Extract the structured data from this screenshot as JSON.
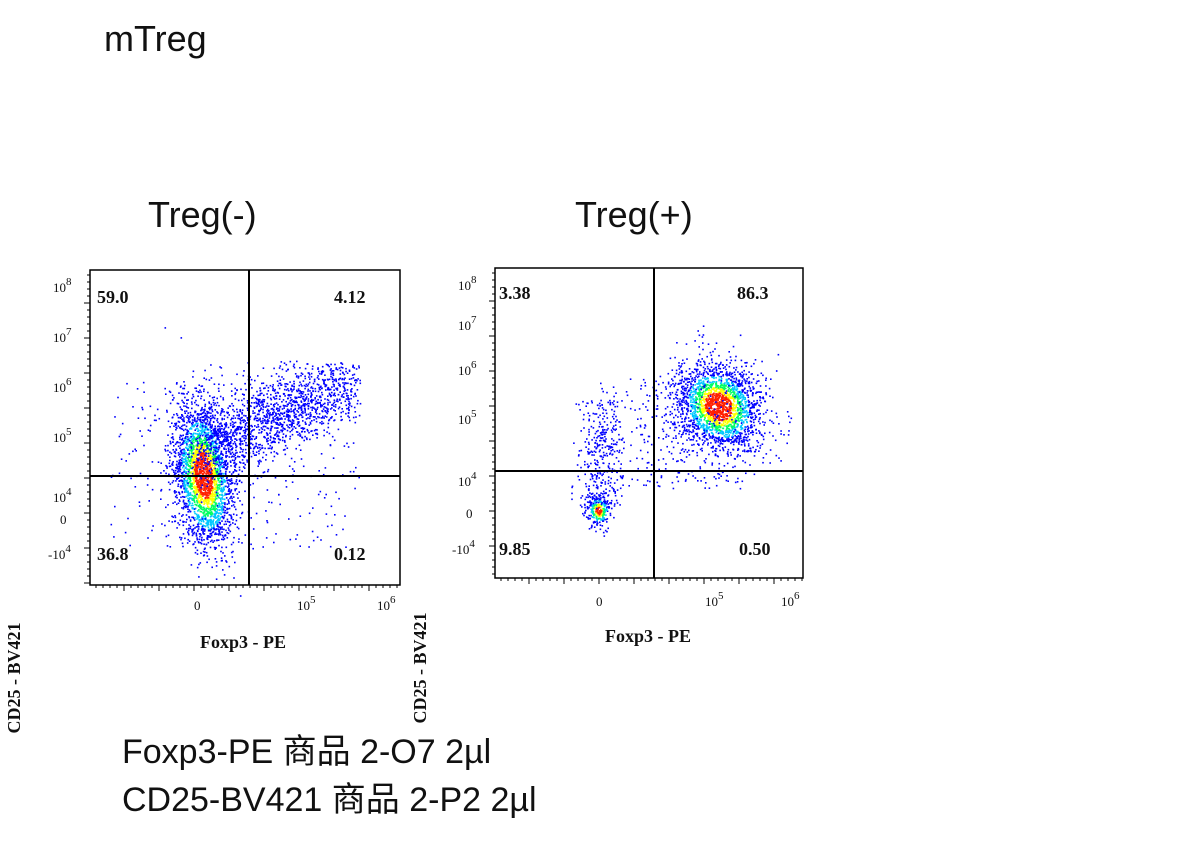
{
  "page_title": "mTreg",
  "chart_data": [
    {
      "type": "scatter",
      "title": "Treg(-)",
      "xlabel": "Foxp3 - PE",
      "ylabel": "CD25 - BV421",
      "x_ticks": [
        "0",
        "10^5",
        "10^6"
      ],
      "y_ticks": [
        "10^8",
        "10^7",
        "10^6",
        "10^5",
        "10^4",
        "0",
        "-10^4"
      ],
      "quadrants": {
        "top_left": "59.0",
        "top_right": "4.12",
        "bottom_left": "36.8",
        "bottom_right": "0.12"
      },
      "quadrant_gate": {
        "x": 30000,
        "y": 10000
      },
      "populations": [
        {
          "name": "main",
          "x_center": 0,
          "y_center": 10000,
          "spread": "elongated along diagonal"
        },
        {
          "name": "upper-right tail",
          "x_center": 100000,
          "y_center": 150000
        }
      ],
      "colormap": [
        "#0000ff",
        "#00c8ff",
        "#00ff60",
        "#ffff00",
        "#ff2000"
      ]
    },
    {
      "type": "scatter",
      "title": "Treg(+)",
      "xlabel": "Foxp3 - PE",
      "ylabel": "CD25 - BV421",
      "x_ticks": [
        "0",
        "10^5",
        "10^6"
      ],
      "y_ticks": [
        "10^8",
        "10^7",
        "10^6",
        "10^5",
        "10^4",
        "0",
        "-10^4"
      ],
      "quadrants": {
        "top_left": "3.38",
        "top_right": "86.3",
        "bottom_left": "9.85",
        "bottom_right": "0.50"
      },
      "quadrant_gate": {
        "x": 30000,
        "y": 10000
      },
      "populations": [
        {
          "name": "main",
          "x_center": 150000,
          "y_center": 200000
        },
        {
          "name": "negative",
          "x_center": 0,
          "y_center": 0
        }
      ],
      "colormap": [
        "#0000ff",
        "#00c8ff",
        "#00ff60",
        "#ffff00",
        "#ff2000"
      ]
    }
  ],
  "notes": [
    "Foxp3-PE  商品 2-O7 2µl",
    "CD25-BV421 商品 2-P2 2µl"
  ]
}
